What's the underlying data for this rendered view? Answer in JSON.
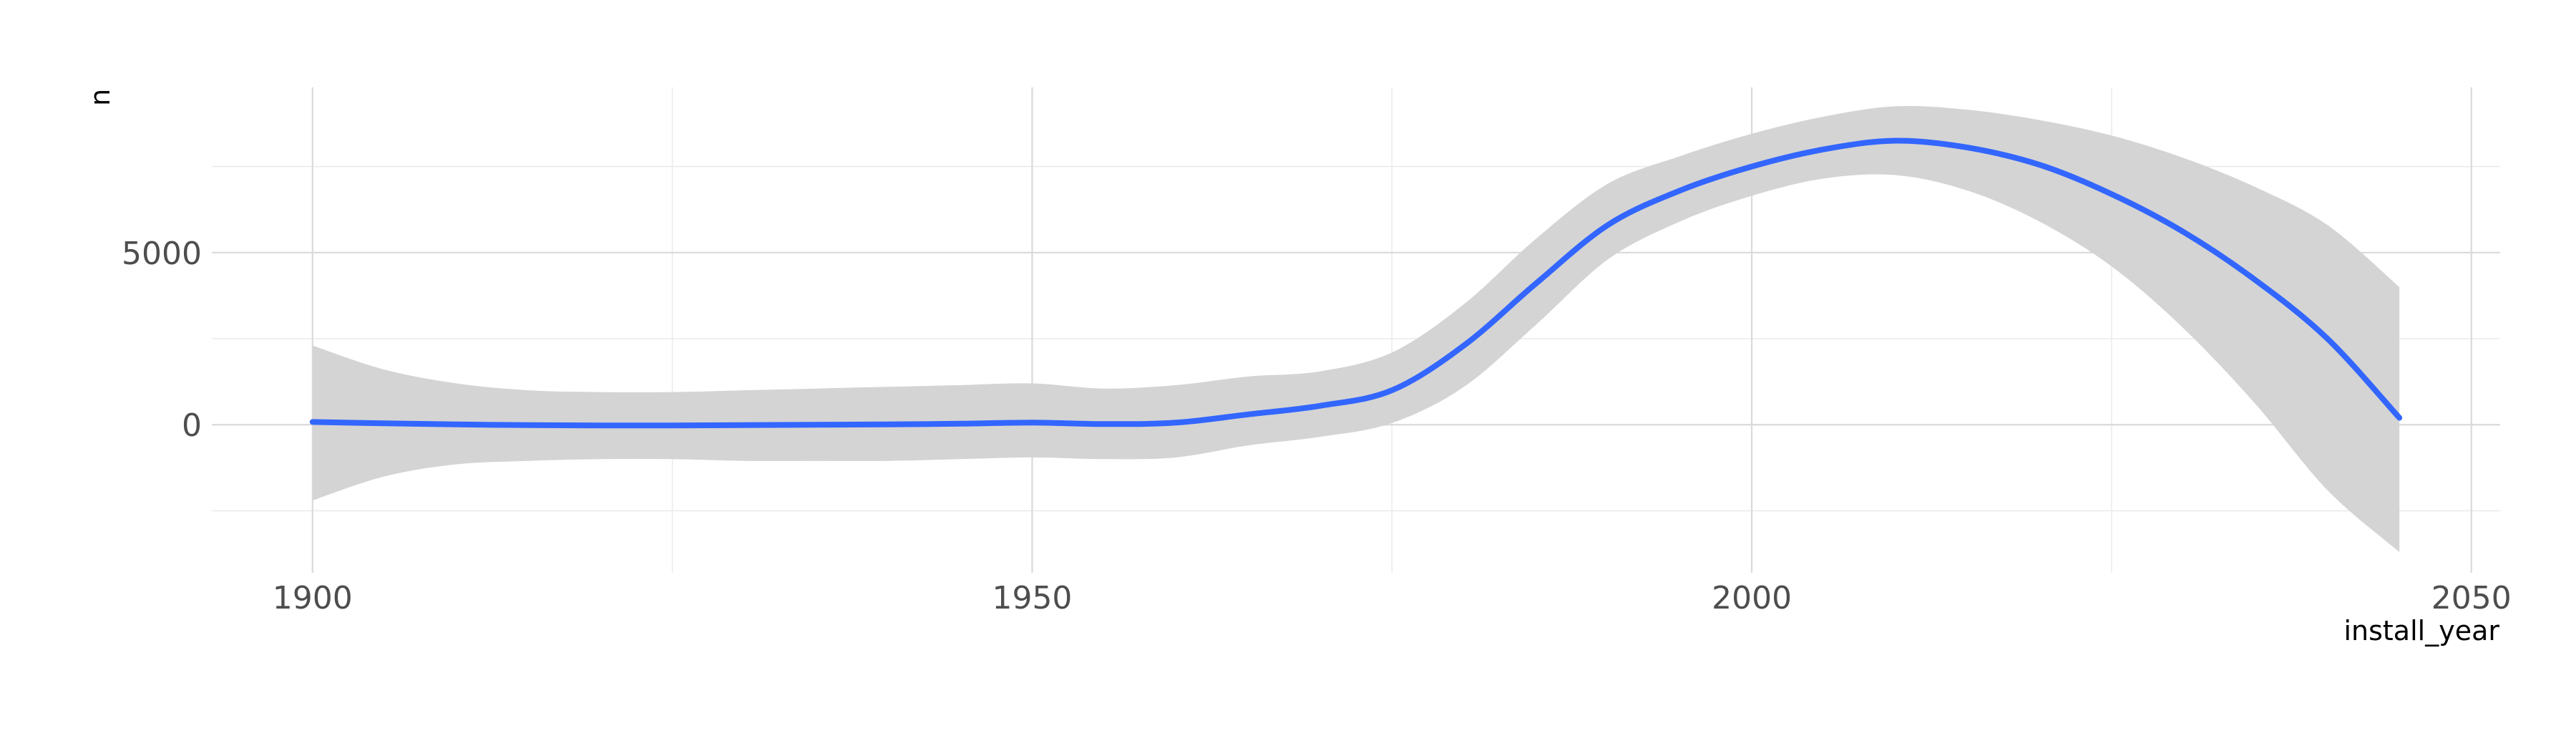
{
  "chart_data": {
    "type": "line",
    "xlabel": "install_year",
    "ylabel": "n",
    "xlim": [
      1893,
      2052
    ],
    "ylim": [
      -4300,
      9800
    ],
    "x_ticks": [
      1900,
      1950,
      2000,
      2050
    ],
    "x_tick_labels": [
      "1900",
      "1950",
      "2000",
      "2050"
    ],
    "y_ticks": [
      0,
      5000
    ],
    "y_tick_labels": [
      "0",
      "5000"
    ],
    "grid": true,
    "legend": "none",
    "colors": {
      "line": "#3366ff",
      "ribbon": "#d4d4d4",
      "grid": "#dadada"
    },
    "series": [
      {
        "x": [
          1900,
          1905,
          1910,
          1915,
          1920,
          1925,
          1930,
          1935,
          1940,
          1945,
          1950,
          1955,
          1960,
          1965,
          1970,
          1975,
          1980,
          1985,
          1990,
          1995,
          2000,
          2005,
          2010,
          2015,
          2020,
          2025,
          2030,
          2035,
          2040,
          2045
        ],
        "y": [
          80,
          40,
          10,
          -10,
          -20,
          -20,
          -10,
          0,
          10,
          30,
          60,
          20,
          60,
          300,
          550,
          1000,
          2300,
          4100,
          5800,
          6800,
          7500,
          8000,
          8250,
          8050,
          7550,
          6700,
          5600,
          4200,
          2500,
          200
        ],
        "lower": [
          -2200,
          -1500,
          -1150,
          -1050,
          -1000,
          -1000,
          -1050,
          -1050,
          -1050,
          -1000,
          -950,
          -1000,
          -950,
          -600,
          -350,
          50,
          1100,
          2900,
          4800,
          5900,
          6650,
          7150,
          7250,
          6800,
          5900,
          4600,
          2800,
          600,
          -1900,
          -3700
        ],
        "upper": [
          2300,
          1600,
          1200,
          1000,
          950,
          950,
          1000,
          1050,
          1100,
          1150,
          1200,
          1050,
          1150,
          1400,
          1550,
          2100,
          3500,
          5400,
          7000,
          7800,
          8450,
          8950,
          9250,
          9150,
          8850,
          8400,
          7750,
          6900,
          5800,
          4000
        ]
      }
    ]
  }
}
